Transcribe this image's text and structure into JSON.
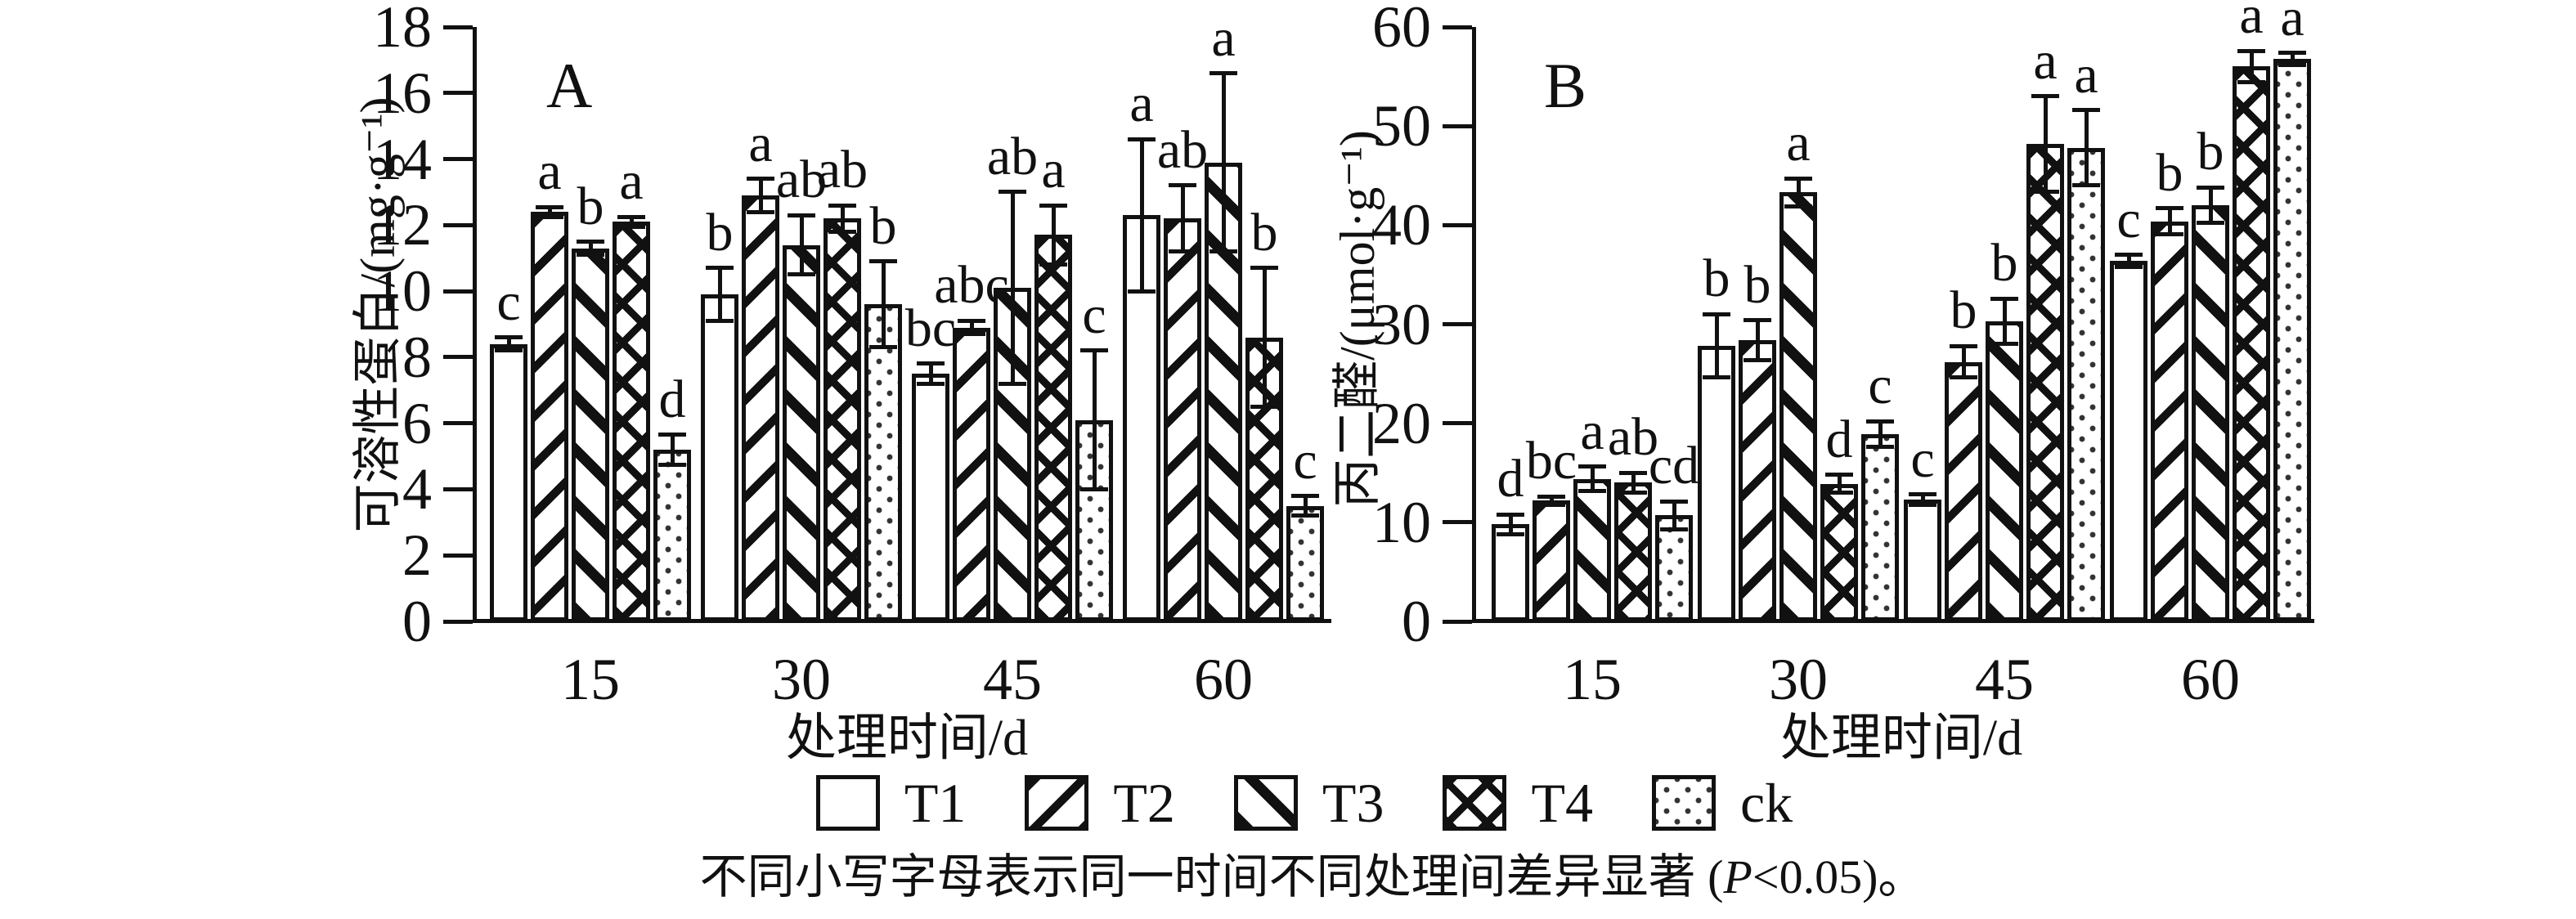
{
  "chart_data": [
    {
      "type": "bar",
      "tag": "A",
      "y_title": "可溶性蛋白/(mg·g⁻¹)",
      "x_title": "处理时间/d",
      "ylim": [
        0,
        18
      ],
      "ytick_step": 2,
      "grid": false,
      "legend_position": "bottom",
      "categories": [
        "15",
        "30",
        "45",
        "60"
      ],
      "series": [
        {
          "name": "T1",
          "pattern": "plain",
          "values": [
            8.4,
            9.9,
            7.5,
            12.3
          ],
          "errors": [
            0.2,
            0.8,
            0.3,
            2.3
          ],
          "letters": [
            "c",
            "b",
            "bc",
            "a"
          ]
        },
        {
          "name": "T2",
          "pattern": "diag-up",
          "values": [
            12.4,
            12.9,
            8.9,
            12.2
          ],
          "errors": [
            0.15,
            0.5,
            0.2,
            1.0
          ],
          "letters": [
            "a",
            "a",
            "abc",
            "ab"
          ]
        },
        {
          "name": "T3",
          "pattern": "diag-down",
          "values": [
            11.3,
            11.4,
            10.1,
            13.9
          ],
          "errors": [
            0.2,
            0.9,
            2.9,
            2.7
          ],
          "letters": [
            "b",
            "ab",
            "ab",
            "a"
          ]
        },
        {
          "name": "T4",
          "pattern": "cross",
          "values": [
            12.1,
            12.2,
            11.7,
            8.6
          ],
          "errors": [
            0.15,
            0.4,
            0.9,
            2.1
          ],
          "letters": [
            "a",
            "ab",
            "a",
            "b"
          ]
        },
        {
          "name": "ck",
          "pattern": "dots",
          "values": [
            5.2,
            9.6,
            6.1,
            3.5
          ],
          "errors": [
            0.45,
            1.3,
            2.1,
            0.3
          ],
          "letters": [
            "d",
            "b",
            "c",
            "c"
          ]
        }
      ]
    },
    {
      "type": "bar",
      "tag": "B",
      "y_title": "丙二醛/(μmol·g⁻¹)",
      "x_title": "处理时间/d",
      "ylim": [
        0,
        60
      ],
      "ytick_step": 10,
      "grid": false,
      "legend_position": "bottom",
      "categories": [
        "15",
        "30",
        "45",
        "60"
      ],
      "series": [
        {
          "name": "T1",
          "pattern": "plain",
          "values": [
            9.8,
            27.8,
            12.3,
            36.4
          ],
          "errors": [
            1.0,
            3.2,
            0.5,
            0.6
          ],
          "letters": [
            "d",
            "b",
            "c",
            "c"
          ]
        },
        {
          "name": "T2",
          "pattern": "diag-up",
          "values": [
            12.2,
            28.4,
            26.2,
            40.4
          ],
          "errors": [
            0.4,
            2.0,
            1.6,
            1.3
          ],
          "letters": [
            "bc",
            "b",
            "b",
            "b"
          ]
        },
        {
          "name": "T3",
          "pattern": "diag-down",
          "values": [
            14.4,
            43.3,
            30.3,
            42.0
          ],
          "errors": [
            1.2,
            1.4,
            2.3,
            1.8
          ],
          "letters": [
            "a",
            "a",
            "b",
            "b"
          ]
        },
        {
          "name": "T4",
          "pattern": "cross",
          "values": [
            14.0,
            13.9,
            48.2,
            56.0
          ],
          "errors": [
            1.0,
            0.9,
            4.8,
            1.6
          ],
          "letters": [
            "ab",
            "d",
            "a",
            "a"
          ]
        },
        {
          "name": "ck",
          "pattern": "dots",
          "values": [
            10.7,
            18.9,
            47.8,
            56.8
          ],
          "errors": [
            1.4,
            1.3,
            3.8,
            0.6
          ],
          "letters": [
            "cd",
            "c",
            "a",
            "a"
          ]
        }
      ]
    }
  ],
  "legend": {
    "items": [
      {
        "label": "T1",
        "pattern": "plain"
      },
      {
        "label": "T2",
        "pattern": "diag-up"
      },
      {
        "label": "T3",
        "pattern": "diag-down"
      },
      {
        "label": "T4",
        "pattern": "cross"
      },
      {
        "label": "ck",
        "pattern": "dots"
      }
    ]
  },
  "caption": {
    "pre": "不同小写字母表示同一时间不同处理间差异显著 (",
    "p_italic": "P",
    "post": "<0.05)。"
  }
}
